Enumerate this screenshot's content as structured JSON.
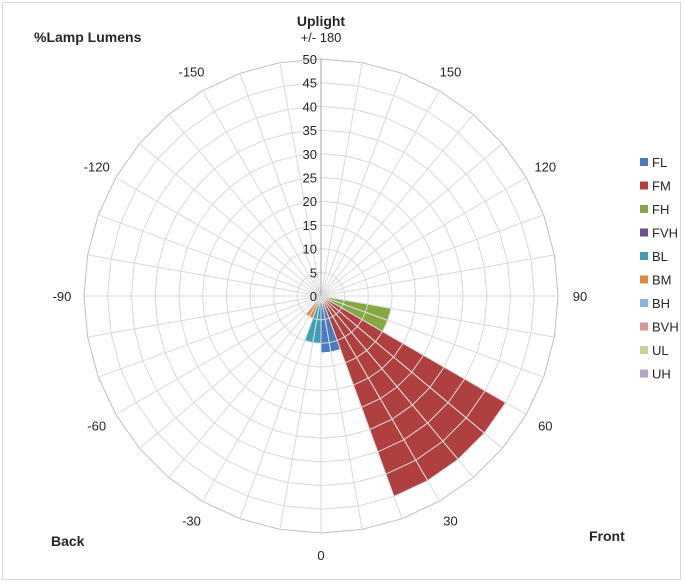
{
  "chart_data": {
    "type": "polar-bar",
    "title": "Uplight",
    "top_label": "+/- 180",
    "corner_labels": {
      "top_left": "%Lamp Lumens",
      "bottom_left": "Back",
      "bottom_right": "Front"
    },
    "radial_axis": {
      "min": 0,
      "max": 50,
      "step": 5,
      "ticks": [
        "0",
        "5",
        "10",
        "15",
        "20",
        "25",
        "30",
        "35",
        "40",
        "45",
        "50"
      ]
    },
    "angle_axis": {
      "step_degrees": 10,
      "labels": [
        {
          "angle": 0,
          "text": "0"
        },
        {
          "angle": 30,
          "text": "30"
        },
        {
          "angle": 60,
          "text": "60"
        },
        {
          "angle": 90,
          "text": "90"
        },
        {
          "angle": 120,
          "text": "120"
        },
        {
          "angle": 150,
          "text": "150"
        },
        {
          "angle": 180,
          "text": "+/- 180"
        },
        {
          "angle": -150,
          "text": "-150"
        },
        {
          "angle": -120,
          "text": "-120"
        },
        {
          "angle": -90,
          "text": "-90"
        },
        {
          "angle": -60,
          "text": "-60"
        },
        {
          "angle": -30,
          "text": "-30"
        }
      ]
    },
    "legend": {
      "position": "right"
    },
    "series": [
      {
        "name": "FL",
        "color": "#4a7bbf",
        "wedges": [
          {
            "from": 0,
            "to": 10,
            "value": 12
          },
          {
            "from": 10,
            "to": 20,
            "value": 12
          }
        ]
      },
      {
        "name": "FM",
        "color": "#b04040",
        "wedges": [
          {
            "from": 20,
            "to": 30,
            "value": 45
          },
          {
            "from": 30,
            "to": 40,
            "value": 45
          },
          {
            "from": 40,
            "to": 50,
            "value": 45
          },
          {
            "from": 50,
            "to": 60,
            "value": 45
          }
        ]
      },
      {
        "name": "FH",
        "color": "#85a843",
        "wedges": [
          {
            "from": 60,
            "to": 70,
            "value": 15
          },
          {
            "from": 70,
            "to": 80,
            "value": 15
          }
        ]
      },
      {
        "name": "FVH",
        "color": "#6b4f91",
        "wedges": []
      },
      {
        "name": "BL",
        "color": "#3f9fb5",
        "wedges": [
          {
            "from": -20,
            "to": -10,
            "value": 10
          },
          {
            "from": -10,
            "to": 0,
            "value": 10
          }
        ]
      },
      {
        "name": "BM",
        "color": "#e0883d",
        "wedges": [
          {
            "from": -30,
            "to": -20,
            "value": 5
          },
          {
            "from": -40,
            "to": -30,
            "value": 5
          }
        ]
      },
      {
        "name": "BH",
        "color": "#8fb0dc",
        "wedges": []
      },
      {
        "name": "BVH",
        "color": "#d99694",
        "wedges": []
      },
      {
        "name": "UL",
        "color": "#c3d79b",
        "wedges": []
      },
      {
        "name": "UH",
        "color": "#b3a2c7",
        "wedges": []
      }
    ]
  }
}
